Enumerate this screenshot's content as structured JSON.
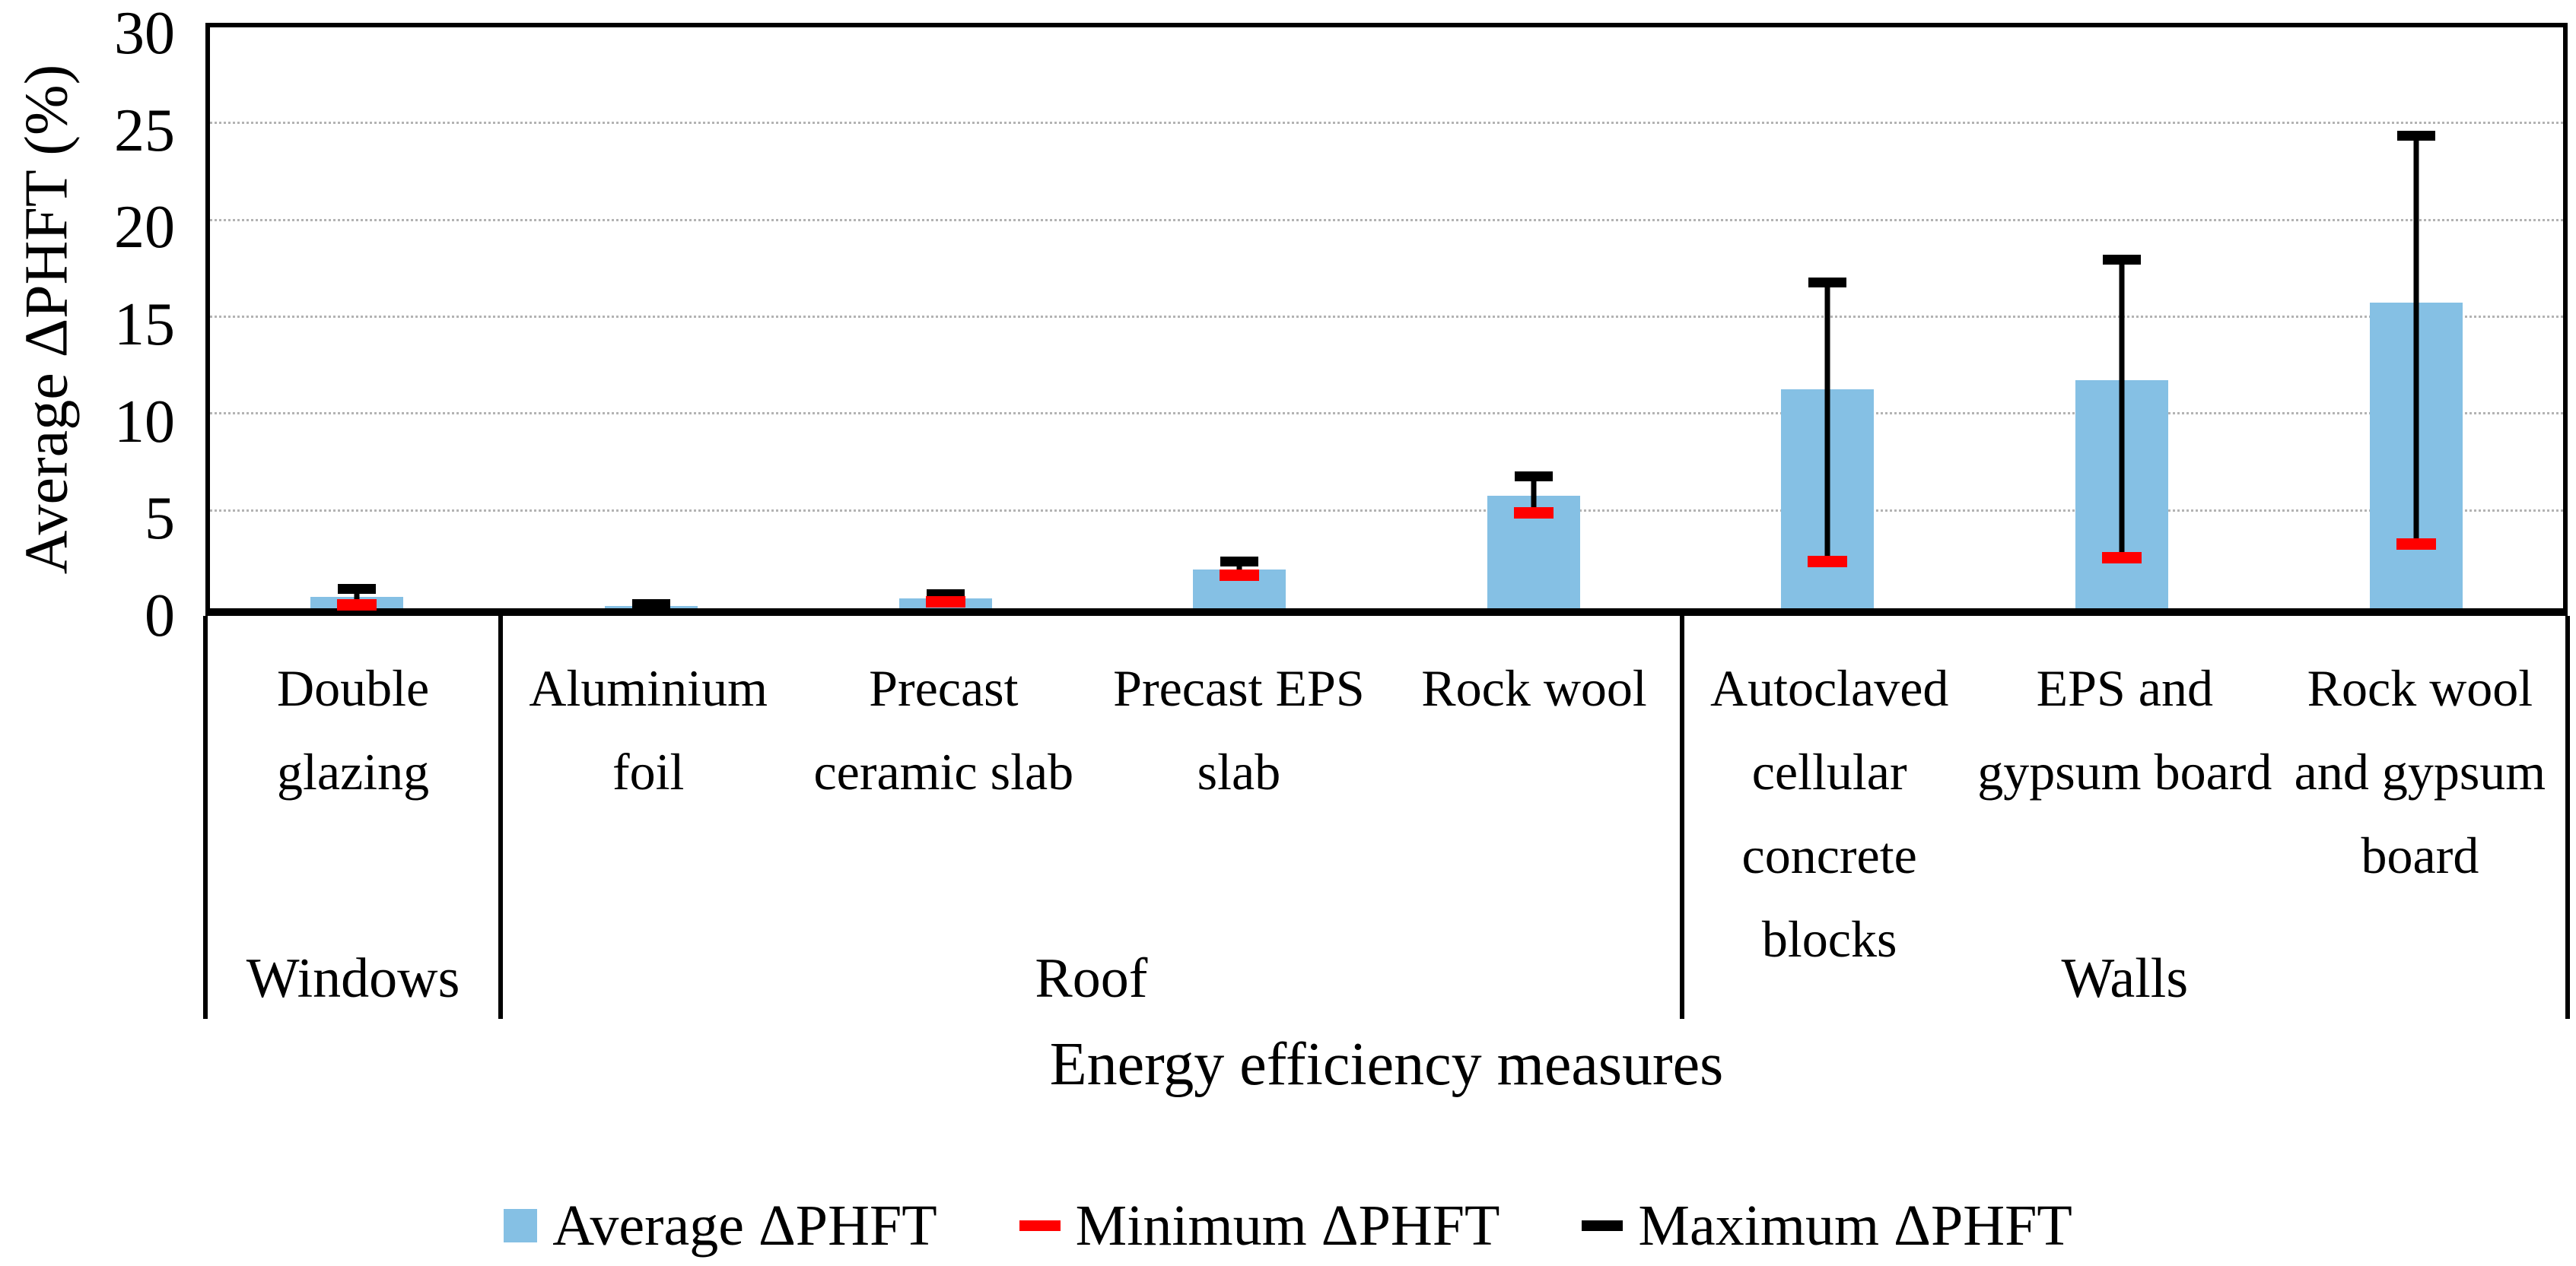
{
  "chart_data": {
    "type": "bar",
    "xlabel": "Energy efficiency measures",
    "ylabel": "Average ΔPHFT (%)",
    "ylim": [
      0,
      30
    ],
    "yticks": [
      0,
      5,
      10,
      15,
      20,
      25,
      30
    ],
    "gridlines_at": [
      5,
      10,
      15,
      20,
      25
    ],
    "grid": "horizontal dotted gray lines",
    "legend_position": "bottom-center",
    "categories": [
      "Double glazing",
      "Aluminium foil",
      "Precast ceramic slab",
      "Precast EPS slab",
      "Rock wool",
      "Autoclaved cellular concrete blocks",
      "EPS and gypsum board",
      "Rock wool and gypsum board"
    ],
    "groups": [
      {
        "label": "Windows",
        "category_count": 1
      },
      {
        "label": "Roof",
        "category_count": 4
      },
      {
        "label": "Walls",
        "category_count": 3
      }
    ],
    "series": [
      {
        "name": "Average ΔPHFT",
        "marker": "bar",
        "color": "#85C0E4",
        "values": [
          0.6,
          0.1,
          0.5,
          2.0,
          5.8,
          11.3,
          11.8,
          15.8
        ]
      },
      {
        "name": "Minimum ΔPHFT",
        "marker": "dash",
        "color": "#FF0000",
        "values": [
          0.15,
          0.0,
          0.3,
          1.7,
          4.9,
          2.4,
          2.6,
          3.3
        ]
      },
      {
        "name": "Maximum ΔPHFT",
        "marker": "dash",
        "color": "#000000",
        "values": [
          1.0,
          0.2,
          0.7,
          2.4,
          6.8,
          16.8,
          18.0,
          24.4
        ]
      }
    ]
  },
  "colors": {
    "bar_fill": "#85C0E4",
    "min_dash": "#FF0000",
    "max_cap": "#000000",
    "gridline": "#B3B3B3",
    "axis": "#000000",
    "background": "#FFFFFF"
  }
}
